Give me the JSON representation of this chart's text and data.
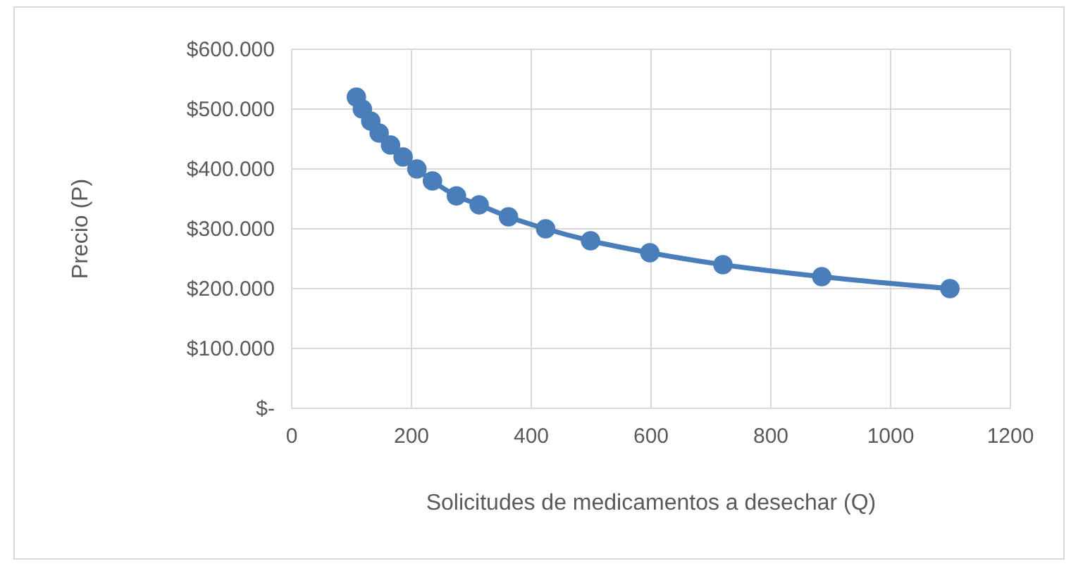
{
  "chart_data": {
    "type": "line",
    "xlabel": "Solicitudes de medicamentos a desechar (Q)",
    "ylabel": "Precio (P)",
    "x": [
      108,
      118,
      132,
      146,
      165,
      186,
      209,
      235,
      275,
      313,
      362,
      424,
      499,
      598,
      720,
      885,
      1099
    ],
    "series": [
      {
        "color": "#4a7ebb",
        "values": [
          520000,
          500000,
          480000,
          460000,
          440000,
          420000,
          400000,
          380000,
          355000,
          340000,
          320000,
          300000,
          280000,
          260000,
          240000,
          220000,
          200000
        ]
      }
    ],
    "xlim": [
      0,
      1200
    ],
    "xticks": [
      0,
      200,
      400,
      600,
      800,
      1000,
      1200
    ],
    "ylim": [
      0,
      600000
    ],
    "yticks": [
      {
        "value": 0,
        "label": "$-"
      },
      {
        "value": 100000,
        "label": "$100.000"
      },
      {
        "value": 200000,
        "label": "$200.000"
      },
      {
        "value": 300000,
        "label": "$300.000"
      },
      {
        "value": 400000,
        "label": "$400.000"
      },
      {
        "value": 500000,
        "label": "$500.000"
      },
      {
        "value": 600000,
        "label": "$600.000"
      }
    ],
    "grid": true,
    "marker": "circle"
  }
}
